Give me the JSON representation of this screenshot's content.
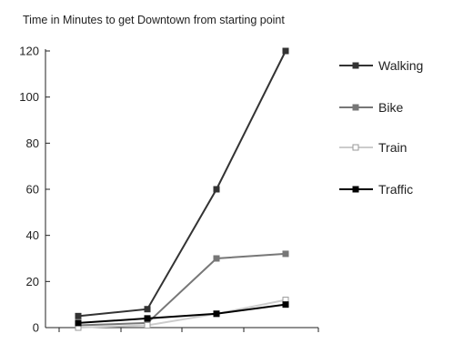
{
  "chart_data": {
    "type": "line",
    "title": "Time in Minutes to get Downtown from starting point",
    "xlabel": "",
    "ylabel": "",
    "x": [
      1,
      2,
      3,
      4
    ],
    "ylim": [
      0,
      120
    ],
    "yticks": [
      0,
      20,
      40,
      60,
      80,
      100,
      120
    ],
    "grid": false,
    "legend_position": "right",
    "series": [
      {
        "name": "Walking",
        "values": [
          5,
          8,
          60,
          120
        ],
        "color": "#333333",
        "marker": "filled-square"
      },
      {
        "name": "Bike",
        "values": [
          1,
          2,
          30,
          32
        ],
        "color": "#777777",
        "marker": "filled-square"
      },
      {
        "name": "Train",
        "values": [
          0,
          1,
          6,
          12
        ],
        "color": "#cccccc",
        "marker": "open-square"
      },
      {
        "name": "Traffic",
        "values": [
          2,
          4,
          6,
          10
        ],
        "color": "#000000",
        "marker": "filled-square"
      }
    ]
  }
}
